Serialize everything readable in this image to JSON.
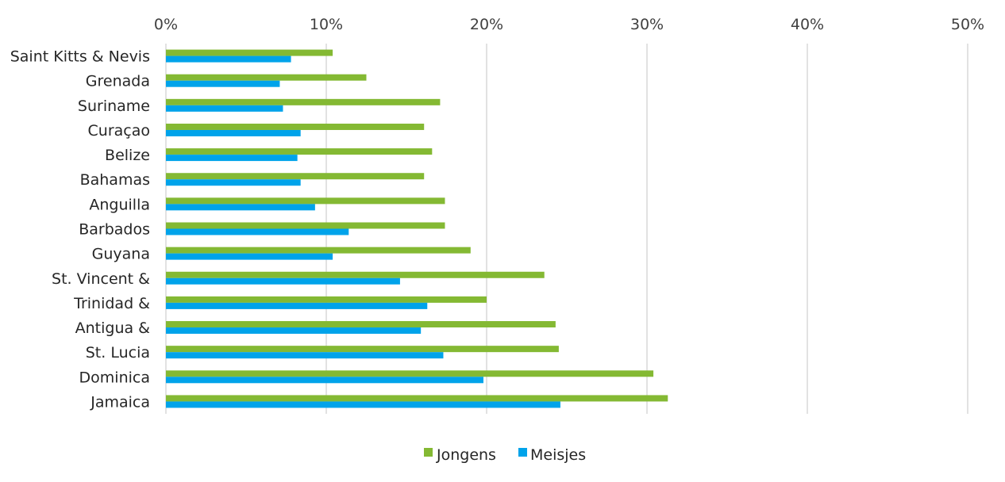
{
  "chart_data": {
    "type": "bar",
    "orientation": "horizontal",
    "title": "",
    "xlabel": "",
    "ylabel": "",
    "xlim": [
      0,
      50
    ],
    "xticks": [
      "0%",
      "10%",
      "20%",
      "30%",
      "40%",
      "50%"
    ],
    "grid": true,
    "legend_placement": "bottom",
    "categories": [
      "Saint Kitts & Nevis",
      "Grenada",
      "Suriname",
      "Curaçao",
      "Belize",
      "Bahamas",
      "Anguilla",
      "Barbados",
      "Guyana",
      "St. Vincent &",
      "Trinidad &",
      "Antigua &",
      "St. Lucia",
      "Dominica",
      "Jamaica"
    ],
    "series": [
      {
        "name": "Jongens",
        "color": "#84b933",
        "values": [
          10.4,
          12.5,
          17.1,
          16.1,
          16.6,
          16.1,
          17.4,
          17.4,
          19.0,
          23.6,
          20.0,
          24.3,
          24.5,
          30.4,
          31.3
        ]
      },
      {
        "name": "Meisjes",
        "color": "#00a3ea",
        "values": [
          7.8,
          7.1,
          7.3,
          8.4,
          8.2,
          8.4,
          9.3,
          11.4,
          10.4,
          14.6,
          16.3,
          15.9,
          17.3,
          19.8,
          24.6
        ]
      }
    ]
  }
}
